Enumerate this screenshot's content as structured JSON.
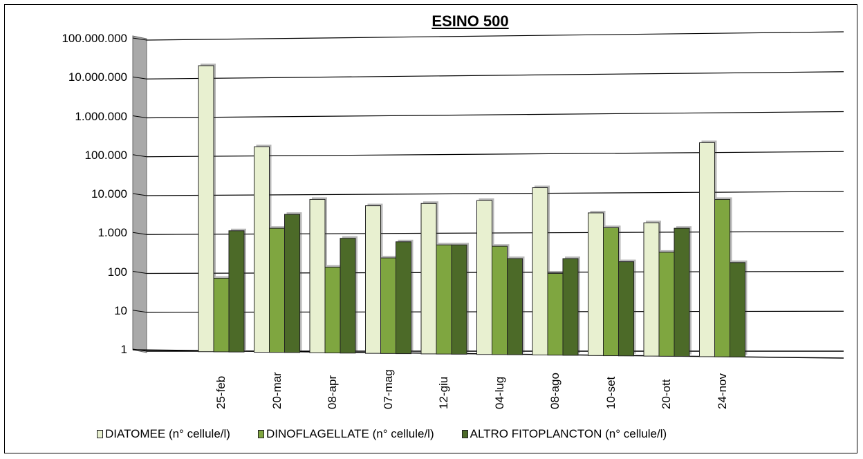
{
  "chart_data": {
    "type": "bar",
    "title": "ESINO 500",
    "y_scale": "log",
    "ylim": [
      1,
      100000000
    ],
    "y_tick_labels": [
      "1",
      "10",
      "100",
      "1.000",
      "10.000",
      "100.000",
      "1.000.000",
      "10.000.000",
      "100.000.000"
    ],
    "categories": [
      "25-feb",
      "20-mar",
      "08-apr",
      "07-mag",
      "12-giu",
      "04-lug",
      "08-ago",
      "10-set",
      "20-ott",
      "24-nov"
    ],
    "series": [
      {
        "name": "DIATOMEE (n° cellule/l)",
        "color": "#e8f0d0",
        "values": [
          22000000,
          180000,
          8000,
          5500,
          6300,
          7500,
          16000,
          3600,
          2000,
          230000
        ]
      },
      {
        "name": "DINOFLAGELLATE (n° cellule/l)",
        "color": "#7fa640",
        "values": [
          75,
          1450,
          145,
          250,
          540,
          500,
          100,
          1500,
          350,
          8000
        ]
      },
      {
        "name": "ALTRO FITOPLANCTON (n° cellule/l)",
        "color": "#4c6a28",
        "values": [
          1250,
          3300,
          800,
          650,
          540,
          240,
          240,
          200,
          1450,
          190
        ]
      }
    ],
    "grid": true,
    "legend_position": "bottom",
    "style": "3d-perspective"
  }
}
